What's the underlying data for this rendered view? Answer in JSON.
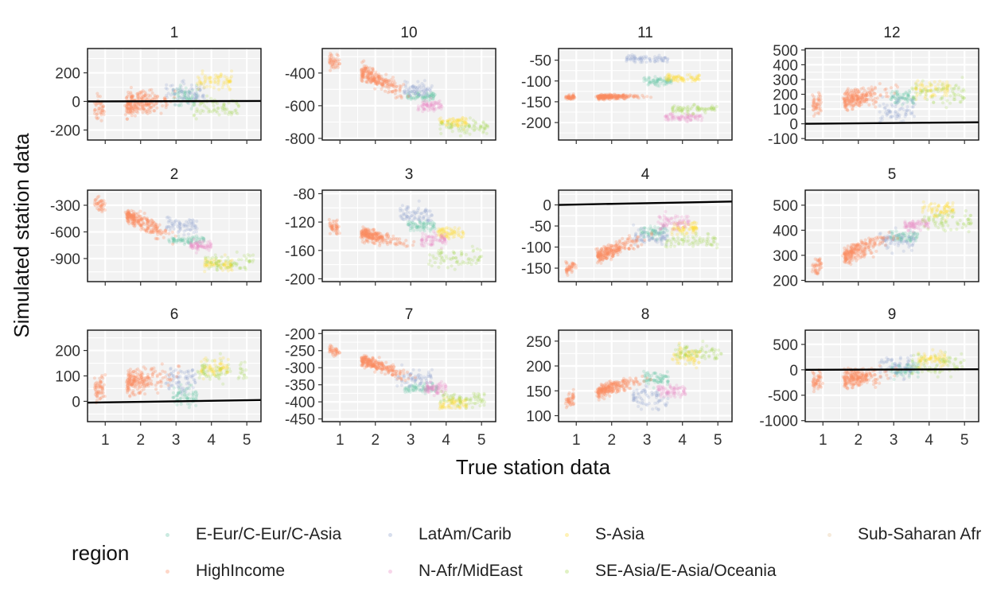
{
  "chart_data": {
    "type": "scatter",
    "xlabel": "True station data",
    "ylabel": "Simulated station data",
    "x_ticks": [
      1,
      2,
      3,
      4,
      5
    ],
    "xlim": [
      0.5,
      5.4
    ],
    "reference_line": "black fitted line (drawn where within panel range)",
    "legend": {
      "title": "region",
      "placement": "bottom",
      "entries": [
        {
          "label": "E-Eur/C-Eur/C-Asia",
          "color": "#66c2a5"
        },
        {
          "label": "LatAm/Carib",
          "color": "#8da0cb"
        },
        {
          "label": "S-Asia",
          "color": "#ffd92f"
        },
        {
          "label": "Sub-Saharan Afr",
          "color": "#e5c494"
        },
        {
          "label": "HighIncome",
          "color": "#fc8d62"
        },
        {
          "label": "N-Afr/MidEast",
          "color": "#e78ac3"
        },
        {
          "label": "SE-Asia/E-Asia/Oceania",
          "color": "#a6d854"
        }
      ]
    },
    "panels": [
      {
        "title": "1",
        "ylim": [
          -270,
          370
        ],
        "y_ticks": [
          -200,
          0,
          200
        ],
        "line": [
          [
            0.5,
            0
          ],
          [
            5.4,
            3
          ]
        ],
        "clusters": [
          {
            "region": "HighIncome",
            "x": [
              0.7,
              3.1
            ],
            "y_center": -20,
            "y_slope": 30,
            "y_spread": 70
          },
          {
            "region": "LatAm/Carib",
            "x": [
              2.7,
              3.8
            ],
            "y_center": 60,
            "y_slope": 0,
            "y_spread": 60
          },
          {
            "region": "E-Eur/C-Eur/C-Asia",
            "x": [
              2.9,
              3.6
            ],
            "y_center": 30,
            "y_slope": 0,
            "y_spread": 60
          },
          {
            "region": "S-Asia",
            "x": [
              3.6,
              4.6
            ],
            "y_center": 150,
            "y_slope": 0,
            "y_spread": 50
          },
          {
            "region": "SE-Asia/E-Asia/Oceania",
            "x": [
              3.5,
              4.8
            ],
            "y_center": -40,
            "y_slope": 0,
            "y_spread": 60
          }
        ]
      },
      {
        "title": "10",
        "ylim": [
          -810,
          -250
        ],
        "y_ticks": [
          -800,
          -600,
          -400
        ],
        "line": null,
        "clusters": [
          {
            "region": "HighIncome",
            "x": [
              0.7,
              3.2
            ],
            "y_center": -430,
            "y_slope": -90,
            "y_spread": 45
          },
          {
            "region": "E-Eur/C-Eur/C-Asia",
            "x": [
              2.9,
              3.7
            ],
            "y_center": -540,
            "y_slope": 0,
            "y_spread": 20
          },
          {
            "region": "LatAm/Carib",
            "x": [
              2.8,
              3.6
            ],
            "y_center": -500,
            "y_slope": 0,
            "y_spread": 40
          },
          {
            "region": "N-Afr/MidEast",
            "x": [
              3.2,
              3.9
            ],
            "y_center": -600,
            "y_slope": 0,
            "y_spread": 30
          },
          {
            "region": "S-Asia",
            "x": [
              3.8,
              4.6
            ],
            "y_center": -700,
            "y_slope": 0,
            "y_spread": 30
          },
          {
            "region": "SE-Asia/E-Asia/Oceania",
            "x": [
              3.8,
              5.2
            ],
            "y_center": -730,
            "y_slope": 0,
            "y_spread": 35
          }
        ]
      },
      {
        "title": "11",
        "ylim": [
          -242,
          -22
        ],
        "y_ticks": [
          -200,
          -150,
          -100,
          -50
        ],
        "line": null,
        "clusters": [
          {
            "region": "HighIncome",
            "x": [
              0.7,
              3.6
            ],
            "y_center": -138,
            "y_slope": 0,
            "y_spread": 5
          },
          {
            "region": "LatAm/Carib",
            "x": [
              2.4,
              3.6
            ],
            "y_center": -47,
            "y_slope": 0,
            "y_spread": 7
          },
          {
            "region": "E-Eur/C-Eur/C-Asia",
            "x": [
              2.9,
              3.7
            ],
            "y_center": -100,
            "y_slope": 0,
            "y_spread": 8
          },
          {
            "region": "S-Asia",
            "x": [
              3.5,
              4.5
            ],
            "y_center": -93,
            "y_slope": 0,
            "y_spread": 8
          },
          {
            "region": "SE-Asia/E-Asia/Oceania",
            "x": [
              3.7,
              5.0
            ],
            "y_center": -168,
            "y_slope": 0,
            "y_spread": 8
          },
          {
            "region": "N-Afr/MidEast",
            "x": [
              3.5,
              4.6
            ],
            "y_center": -188,
            "y_slope": 0,
            "y_spread": 8
          }
        ]
      },
      {
        "title": "12",
        "ylim": [
          -110,
          510
        ],
        "y_ticks": [
          -100,
          0,
          100,
          200,
          300,
          400,
          500
        ],
        "line": [
          [
            0.5,
            0
          ],
          [
            5.4,
            10
          ]
        ],
        "clusters": [
          {
            "region": "HighIncome",
            "x": [
              0.7,
              3.4
            ],
            "y_center": 180,
            "y_slope": 40,
            "y_spread": 55
          },
          {
            "region": "LatAm/Carib",
            "x": [
              2.6,
              3.6
            ],
            "y_center": 90,
            "y_slope": 0,
            "y_spread": 60
          },
          {
            "region": "E-Eur/C-Eur/C-Asia",
            "x": [
              2.9,
              3.6
            ],
            "y_center": 180,
            "y_slope": 0,
            "y_spread": 40
          },
          {
            "region": "S-Asia",
            "x": [
              3.6,
              4.6
            ],
            "y_center": 230,
            "y_slope": 0,
            "y_spread": 50
          },
          {
            "region": "SE-Asia/E-Asia/Oceania",
            "x": [
              3.5,
              5.0
            ],
            "y_center": 210,
            "y_slope": 0,
            "y_spread": 60
          }
        ]
      },
      {
        "title": "2",
        "ylim": [
          -1160,
          -130
        ],
        "y_ticks": [
          -900,
          -600,
          -300
        ],
        "line": null,
        "clusters": [
          {
            "region": "HighIncome",
            "x": [
              0.7,
              3.2
            ],
            "y_center": -480,
            "y_slope": -180,
            "y_spread": 70
          },
          {
            "region": "E-Eur/C-Eur/C-Asia",
            "x": [
              2.8,
              3.8
            ],
            "y_center": -690,
            "y_slope": 0,
            "y_spread": 35
          },
          {
            "region": "LatAm/Carib",
            "x": [
              2.7,
              3.6
            ],
            "y_center": -520,
            "y_slope": 0,
            "y_spread": 80
          },
          {
            "region": "N-Afr/MidEast",
            "x": [
              3.4,
              4.0
            ],
            "y_center": -760,
            "y_slope": 0,
            "y_spread": 50
          },
          {
            "region": "S-Asia",
            "x": [
              3.8,
              4.6
            ],
            "y_center": -960,
            "y_slope": 0,
            "y_spread": 60
          },
          {
            "region": "SE-Asia/E-Asia/Oceania",
            "x": [
              3.8,
              5.2
            ],
            "y_center": -930,
            "y_slope": 0,
            "y_spread": 70
          }
        ]
      },
      {
        "title": "3",
        "ylim": [
          -204,
          -75
        ],
        "y_ticks": [
          -200,
          -160,
          -120,
          -80
        ],
        "line": null,
        "clusters": [
          {
            "region": "HighIncome",
            "x": [
              0.7,
              3.2
            ],
            "y_center": -140,
            "y_slope": -12,
            "y_spread": 8
          },
          {
            "region": "LatAm/Carib",
            "x": [
              2.7,
              3.6
            ],
            "y_center": -110,
            "y_slope": 0,
            "y_spread": 12
          },
          {
            "region": "E-Eur/C-Eur/C-Asia",
            "x": [
              2.9,
              3.7
            ],
            "y_center": -125,
            "y_slope": 0,
            "y_spread": 6
          },
          {
            "region": "S-Asia",
            "x": [
              3.7,
              4.5
            ],
            "y_center": -135,
            "y_slope": 0,
            "y_spread": 7
          },
          {
            "region": "SE-Asia/E-Asia/Oceania",
            "x": [
              3.5,
              5.0
            ],
            "y_center": -170,
            "y_slope": 0,
            "y_spread": 12
          },
          {
            "region": "N-Afr/MidEast",
            "x": [
              3.3,
              4.0
            ],
            "y_center": -145,
            "y_slope": 0,
            "y_spread": 8
          }
        ]
      },
      {
        "title": "4",
        "ylim": [
          -182,
          35
        ],
        "y_ticks": [
          -150,
          -100,
          -50,
          0
        ],
        "line": [
          [
            0.5,
            0
          ],
          [
            5.4,
            8
          ]
        ],
        "clusters": [
          {
            "region": "HighIncome",
            "x": [
              0.7,
              3.2
            ],
            "y_center": -110,
            "y_slope": 35,
            "y_spread": 15
          },
          {
            "region": "E-Eur/C-Eur/C-Asia",
            "x": [
              2.8,
              3.6
            ],
            "y_center": -65,
            "y_slope": 0,
            "y_spread": 12
          },
          {
            "region": "LatAm/Carib",
            "x": [
              2.6,
              3.6
            ],
            "y_center": -75,
            "y_slope": 0,
            "y_spread": 18
          },
          {
            "region": "N-Afr/MidEast",
            "x": [
              3.3,
              4.2
            ],
            "y_center": -40,
            "y_slope": 0,
            "y_spread": 15
          },
          {
            "region": "S-Asia",
            "x": [
              3.7,
              4.4
            ],
            "y_center": -55,
            "y_slope": 0,
            "y_spread": 12
          },
          {
            "region": "SE-Asia/E-Asia/Oceania",
            "x": [
              3.5,
              5.0
            ],
            "y_center": -85,
            "y_slope": 0,
            "y_spread": 15
          }
        ]
      },
      {
        "title": "5",
        "ylim": [
          195,
          560
        ],
        "y_ticks": [
          200,
          300,
          400,
          500
        ],
        "line": null,
        "clusters": [
          {
            "region": "HighIncome",
            "x": [
              0.7,
              3.3
            ],
            "y_center": 320,
            "y_slope": 50,
            "y_spread": 30
          },
          {
            "region": "E-Eur/C-Eur/C-Asia",
            "x": [
              2.9,
              3.7
            ],
            "y_center": 375,
            "y_slope": 0,
            "y_spread": 18
          },
          {
            "region": "LatAm/Carib",
            "x": [
              2.6,
              3.6
            ],
            "y_center": 360,
            "y_slope": 0,
            "y_spread": 30
          },
          {
            "region": "S-Asia",
            "x": [
              3.8,
              4.7
            ],
            "y_center": 480,
            "y_slope": 0,
            "y_spread": 25
          },
          {
            "region": "SE-Asia/E-Asia/Oceania",
            "x": [
              3.8,
              5.2
            ],
            "y_center": 440,
            "y_slope": 0,
            "y_spread": 35
          },
          {
            "region": "N-Afr/MidEast",
            "x": [
              3.3,
              4.0
            ],
            "y_center": 420,
            "y_slope": 0,
            "y_spread": 20
          }
        ]
      },
      {
        "title": "6",
        "ylim": [
          -80,
          280
        ],
        "y_ticks": [
          0,
          100,
          200
        ],
        "line": [
          [
            0.5,
            -5
          ],
          [
            5.4,
            5
          ]
        ],
        "clusters": [
          {
            "region": "HighIncome",
            "x": [
              0.7,
              3.2
            ],
            "y_center": 80,
            "y_slope": 25,
            "y_spread": 40
          },
          {
            "region": "E-Eur/C-Eur/C-Asia",
            "x": [
              2.9,
              3.6
            ],
            "y_center": 20,
            "y_slope": 0,
            "y_spread": 35
          },
          {
            "region": "LatAm/Carib",
            "x": [
              2.7,
              3.6
            ],
            "y_center": 90,
            "y_slope": 0,
            "y_spread": 45
          },
          {
            "region": "S-Asia",
            "x": [
              3.7,
              4.5
            ],
            "y_center": 130,
            "y_slope": 0,
            "y_spread": 30
          },
          {
            "region": "SE-Asia/E-Asia/Oceania",
            "x": [
              3.6,
              5.0
            ],
            "y_center": 120,
            "y_slope": 0,
            "y_spread": 45
          }
        ]
      },
      {
        "title": "7",
        "ylim": [
          -458,
          -190
        ],
        "y_ticks": [
          -450,
          -400,
          -350,
          -300,
          -250,
          -200
        ],
        "line": null,
        "clusters": [
          {
            "region": "HighIncome",
            "x": [
              0.7,
              3.2
            ],
            "y_center": -290,
            "y_slope": -35,
            "y_spread": 15
          },
          {
            "region": "E-Eur/C-Eur/C-Asia",
            "x": [
              2.8,
              3.8
            ],
            "y_center": -360,
            "y_slope": 0,
            "y_spread": 12
          },
          {
            "region": "LatAm/Carib",
            "x": [
              2.6,
              3.6
            ],
            "y_center": -330,
            "y_slope": 0,
            "y_spread": 25
          },
          {
            "region": "N-Afr/MidEast",
            "x": [
              3.4,
              4.0
            ],
            "y_center": -360,
            "y_slope": 0,
            "y_spread": 15
          },
          {
            "region": "S-Asia",
            "x": [
              3.8,
              4.6
            ],
            "y_center": -405,
            "y_slope": 0,
            "y_spread": 15
          },
          {
            "region": "SE-Asia/E-Asia/Oceania",
            "x": [
              3.8,
              5.1
            ],
            "y_center": -390,
            "y_slope": 0,
            "y_spread": 20
          }
        ]
      },
      {
        "title": "8",
        "ylim": [
          88,
          272
        ],
        "y_ticks": [
          100,
          150,
          200,
          250
        ],
        "line": null,
        "clusters": [
          {
            "region": "HighIncome",
            "x": [
              0.7,
              3.2
            ],
            "y_center": 155,
            "y_slope": 18,
            "y_spread": 12
          },
          {
            "region": "LatAm/Carib",
            "x": [
              2.6,
              3.6
            ],
            "y_center": 135,
            "y_slope": 0,
            "y_spread": 18
          },
          {
            "region": "E-Eur/C-Eur/C-Asia",
            "x": [
              2.9,
              3.6
            ],
            "y_center": 175,
            "y_slope": 0,
            "y_spread": 10
          },
          {
            "region": "N-Afr/MidEast",
            "x": [
              3.3,
              4.1
            ],
            "y_center": 150,
            "y_slope": 0,
            "y_spread": 10
          },
          {
            "region": "S-Asia",
            "x": [
              3.7,
              4.5
            ],
            "y_center": 220,
            "y_slope": 0,
            "y_spread": 15
          },
          {
            "region": "SE-Asia/E-Asia/Oceania",
            "x": [
              3.8,
              5.1
            ],
            "y_center": 225,
            "y_slope": 0,
            "y_spread": 15
          }
        ]
      },
      {
        "title": "9",
        "ylim": [
          -1020,
          780
        ],
        "y_ticks": [
          -1000,
          -500,
          0,
          500
        ],
        "line": [
          [
            0.5,
            0
          ],
          [
            5.4,
            10
          ]
        ],
        "clusters": [
          {
            "region": "HighIncome",
            "x": [
              0.7,
              3.2
            ],
            "y_center": -150,
            "y_slope": 60,
            "y_spread": 150
          },
          {
            "region": "LatAm/Carib",
            "x": [
              2.6,
              3.6
            ],
            "y_center": 50,
            "y_slope": 0,
            "y_spread": 180
          },
          {
            "region": "E-Eur/C-Eur/C-Asia",
            "x": [
              2.9,
              3.7
            ],
            "y_center": 0,
            "y_slope": 0,
            "y_spread": 120
          },
          {
            "region": "S-Asia",
            "x": [
              3.7,
              4.5
            ],
            "y_center": 200,
            "y_slope": 0,
            "y_spread": 120
          },
          {
            "region": "SE-Asia/E-Asia/Oceania",
            "x": [
              3.5,
              5.0
            ],
            "y_center": 100,
            "y_slope": 0,
            "y_spread": 180
          }
        ]
      }
    ]
  }
}
